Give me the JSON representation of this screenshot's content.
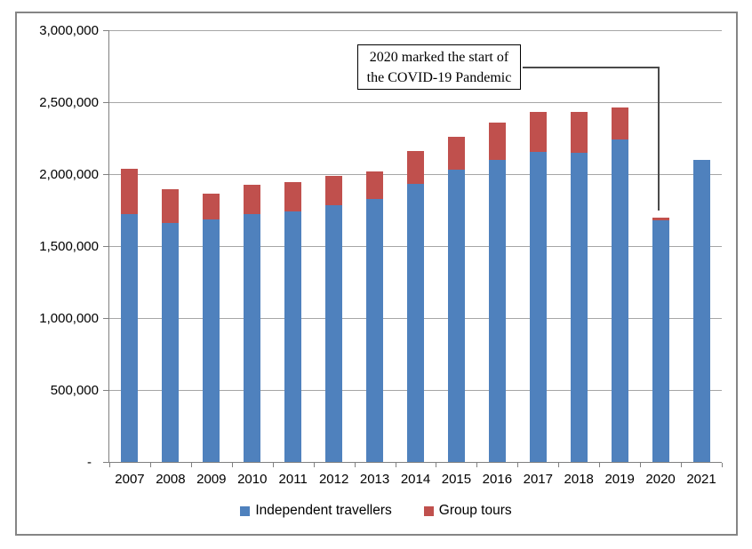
{
  "chart_data": {
    "type": "bar",
    "stacked": true,
    "title": "",
    "xlabel": "",
    "ylabel": "",
    "categories": [
      "2007",
      "2008",
      "2009",
      "2010",
      "2011",
      "2012",
      "2013",
      "2014",
      "2015",
      "2016",
      "2017",
      "2018",
      "2019",
      "2020",
      "2021"
    ],
    "series": [
      {
        "name": "Independent travellers",
        "color": "#4F81BD",
        "values": [
          1720000,
          1660000,
          1685000,
          1720000,
          1740000,
          1785000,
          1830000,
          1930000,
          2030000,
          2100000,
          2155000,
          2150000,
          2240000,
          1680000,
          2100000
        ]
      },
      {
        "name": "Group tours",
        "color": "#C0504D",
        "values": [
          320000,
          235000,
          180000,
          205000,
          205000,
          205000,
          190000,
          230000,
          230000,
          255000,
          275000,
          285000,
          225000,
          15000,
          0
        ]
      }
    ],
    "ylim": [
      0,
      3000000
    ],
    "ytick_step": 500000,
    "ytick_labels": [
      "-",
      "500,000",
      "1,000,000",
      "1,500,000",
      "2,000,000",
      "2,500,000",
      "3,000,000"
    ],
    "grid": true,
    "legend_position": "bottom",
    "annotation": {
      "line1": "2020 marked the start of",
      "line2": "the COVID-19 Pandemic",
      "points_to": "2020"
    }
  },
  "colors": {
    "background": "#FFFFFF",
    "grid": "#A6A6A6",
    "axis": "#808080",
    "frame_border": "#858585",
    "text": "#000000",
    "annotation_border": "#000000",
    "connector": "#4A4A4A",
    "series_blue": "#4F81BD",
    "series_red": "#C0504D"
  }
}
